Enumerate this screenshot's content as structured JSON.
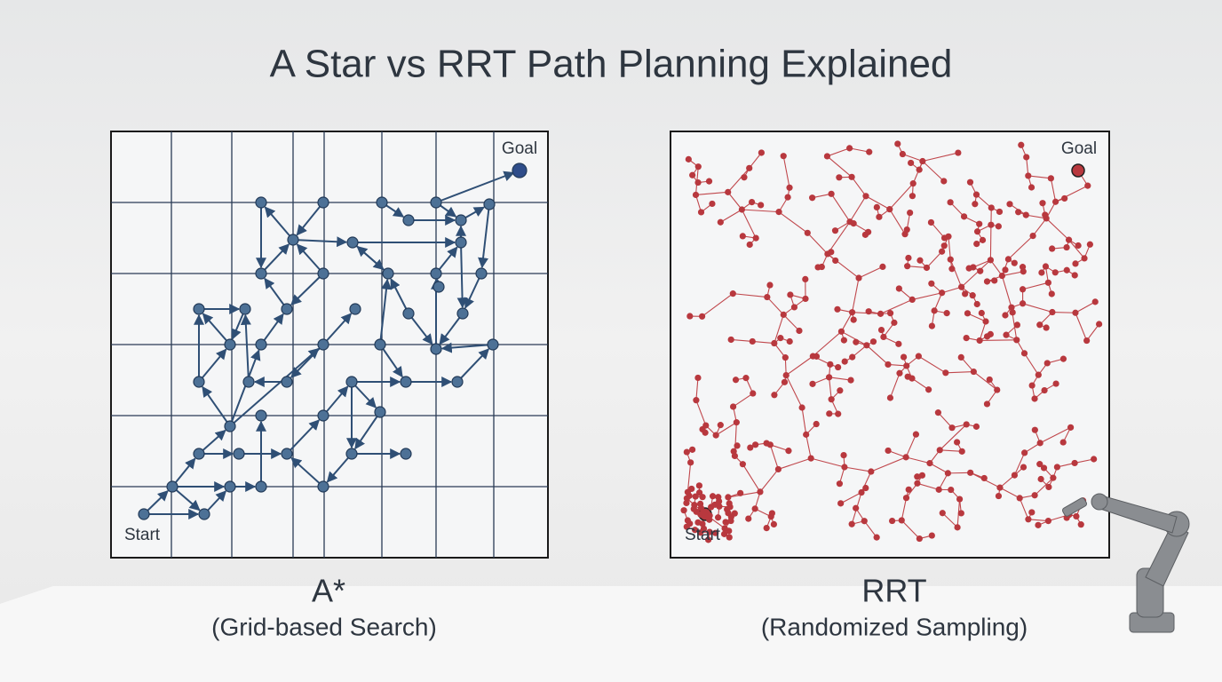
{
  "title": "A Star vs RRT Path Planning Explained",
  "panels": [
    {
      "goal": "Goal",
      "start": "Start",
      "label": "A*",
      "caption": "(Grid-based Search)"
    },
    {
      "goal": "Goal",
      "start": "Start",
      "label": "RRT",
      "caption": "(Randomized Sampling)"
    }
  ]
}
